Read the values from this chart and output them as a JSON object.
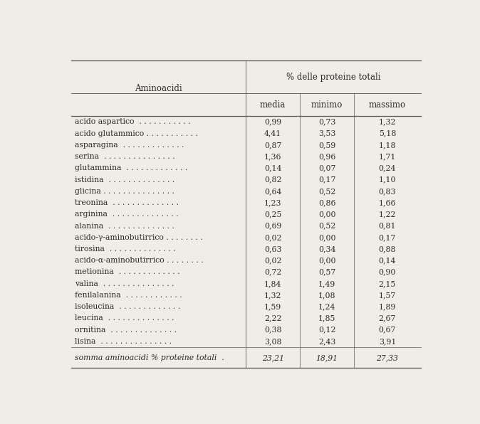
{
  "header_col": "Aminoacidi",
  "header_span": "% delle proteine totali",
  "subheaders": [
    "media",
    "minimo",
    "massimo"
  ],
  "rows": [
    [
      "acido aspartico  . . . . . . . . . . .",
      "0,99",
      "0,73",
      "1,32"
    ],
    [
      "acido glutammico . . . . . . . . . . .",
      "4,41",
      "3,53",
      "5,18"
    ],
    [
      "asparagina  . . . . . . . . . . . . .",
      "0,87",
      "0,59",
      "1,18"
    ],
    [
      "serina  . . . . . . . . . . . . . . .",
      "1,36",
      "0,96",
      "1,71"
    ],
    [
      "glutammina  . . . . . . . . . . . . .",
      "0,14",
      "0,07",
      "0,24"
    ],
    [
      "istidina  . . . . . . . . . . . . . .",
      "0,82",
      "0,17",
      "1,10"
    ],
    [
      "glicina . . . . . . . . . . . . . . .",
      "0,64",
      "0,52",
      "0,83"
    ],
    [
      "treonina  . . . . . . . . . . . . . .",
      "1,23",
      "0,86",
      "1,66"
    ],
    [
      "arginina  . . . . . . . . . . . . . .",
      "0,25",
      "0,00",
      "1,22"
    ],
    [
      "alanina  . . . . . . . . . . . . . .",
      "0,69",
      "0,52",
      "0,81"
    ],
    [
      "acido-γ-aminobutirrico . . . . . . . .",
      "0,02",
      "0,00",
      "0,17"
    ],
    [
      "tirosina  . . . . . . . . . . . . . .",
      "0,63",
      "0,34",
      "0,88"
    ],
    [
      "acido-α-aminobutirrico . . . . . . . .",
      "0,02",
      "0,00",
      "0,14"
    ],
    [
      "metionina  . . . . . . . . . . . . .",
      "0,72",
      "0,57",
      "0,90"
    ],
    [
      "valina  . . . . . . . . . . . . . . .",
      "1,84",
      "1,49",
      "2,15"
    ],
    [
      "fenilalanina  . . . . . . . . . . . .",
      "1,32",
      "1,08",
      "1,57"
    ],
    [
      "isoleucina  . . . . . . . . . . . . .",
      "1,59",
      "1,24",
      "1,89"
    ],
    [
      "leucina  . . . . . . . . . . . . . .",
      "2,22",
      "1,85",
      "2,67"
    ],
    [
      "ornitina  . . . . . . . . . . . . . .",
      "0,38",
      "0,12",
      "0,67"
    ],
    [
      "lisina  . . . . . . . . . . . . . . .",
      "3,08",
      "2,43",
      "3,91"
    ]
  ],
  "footer": [
    "somma aminoacidi % proteine totali  .",
    "23,21",
    "18,91",
    "27,33"
  ],
  "bg_color": "#f0ede6",
  "text_color": "#2a2a2a",
  "line_color": "#555555",
  "font_size": 7.8,
  "header_font_size": 8.5
}
